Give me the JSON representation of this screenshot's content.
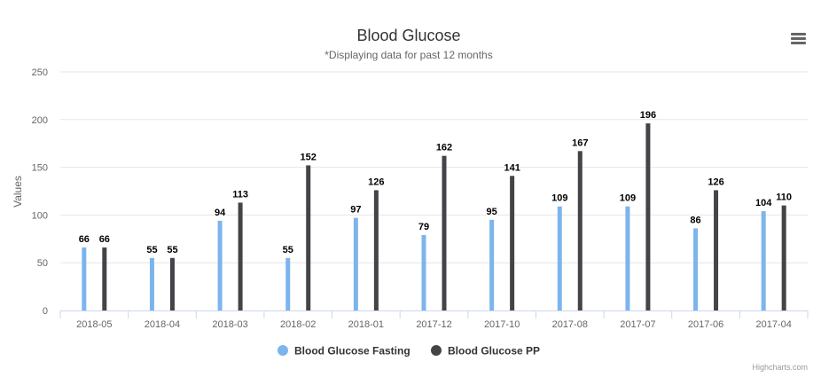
{
  "chart_data": {
    "type": "bar",
    "title": "Blood Glucose",
    "subtitle": "*Displaying data for past 12 months",
    "ylabel": "Values",
    "xlabel": "",
    "ylim": [
      0,
      250
    ],
    "yticks": [
      0,
      50,
      100,
      150,
      200,
      250
    ],
    "categories": [
      "2018-05",
      "2018-04",
      "2018-03",
      "2018-02",
      "2018-01",
      "2017-12",
      "2017-10",
      "2017-08",
      "2017-07",
      "2017-06",
      "2017-04"
    ],
    "series": [
      {
        "name": "Blood Glucose Fasting",
        "color": "#7cb5ec",
        "values": [
          66,
          55,
          94,
          55,
          97,
          79,
          95,
          109,
          109,
          86,
          104
        ]
      },
      {
        "name": "Blood Glucose PP",
        "color": "#434348",
        "values": [
          66,
          55,
          113,
          152,
          126,
          162,
          141,
          167,
          196,
          126,
          110
        ]
      }
    ],
    "grid": true,
    "legend_position": "bottom-center"
  },
  "credits": "Highcharts.com",
  "menu_icon": "hamburger-menu-icon"
}
